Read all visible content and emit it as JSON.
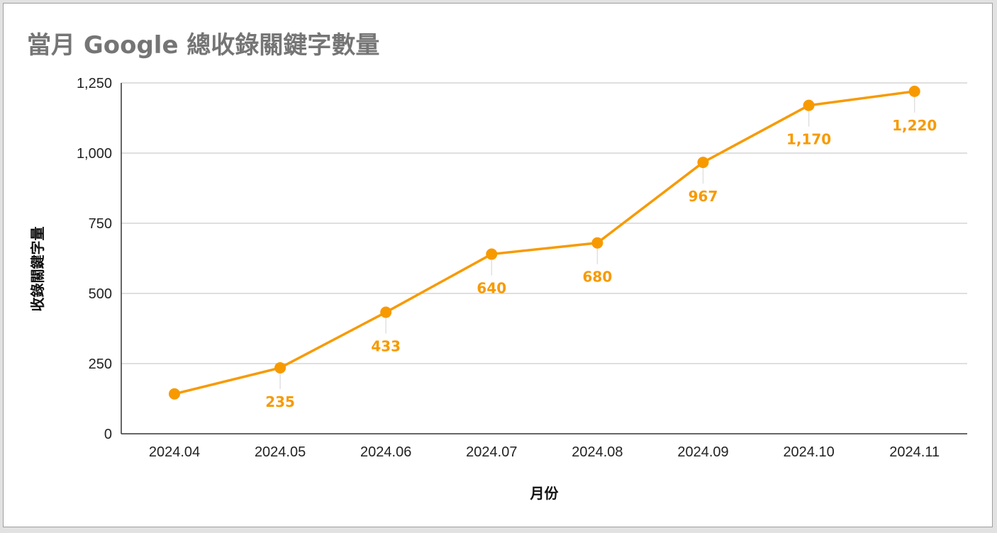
{
  "chart_data": {
    "type": "line",
    "title": "當月 Google 總收錄關鍵字數量",
    "xlabel": "月份",
    "ylabel": "收錄關鍵字量",
    "categories": [
      "2024.04",
      "2024.05",
      "2024.06",
      "2024.07",
      "2024.08",
      "2024.09",
      "2024.10",
      "2024.11"
    ],
    "series": [
      {
        "values": [
          142,
          235,
          433,
          640,
          680,
          967,
          1170,
          1220
        ],
        "data_labels": [
          "",
          "235",
          "433",
          "640",
          "680",
          "967",
          "1,170",
          "1,220"
        ]
      }
    ],
    "ylim": [
      0,
      1250
    ],
    "yticks": [
      0,
      250,
      500,
      750,
      1000,
      1250
    ],
    "ytick_labels": [
      "0",
      "250",
      "500",
      "750",
      "1,000",
      "1,250"
    ],
    "grid": true,
    "legend": "none",
    "colors": {
      "line": "#f79a00",
      "gridline": "#cccccc",
      "axis": "#333333",
      "title": "#757575"
    }
  }
}
